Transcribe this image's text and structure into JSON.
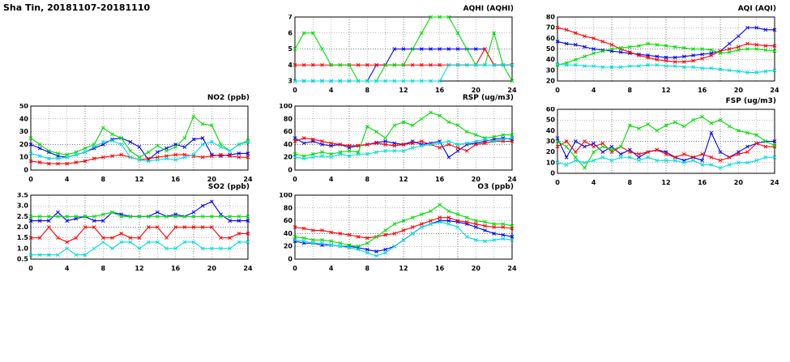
{
  "page_title": "Sha Tin, 20181107-20181110",
  "colors": {
    "blue": "#0000ff",
    "red": "#ff0000",
    "green": "#00dd00",
    "cyan": "#00dddd"
  },
  "x_axis": {
    "min": 0,
    "max": 24,
    "ticks": [
      0,
      4,
      8,
      12,
      16,
      20,
      24
    ],
    "grid_step": 2,
    "unit": "hour"
  },
  "chart_data": [
    {
      "id": "aqhi",
      "type": "line",
      "title": "AQHI (AQHI)",
      "ylim": [
        3,
        7
      ],
      "yticks": [
        3,
        4,
        5,
        6,
        7
      ],
      "ydecimals": 0,
      "series": [
        {
          "name": "blue",
          "color": "#0000ff",
          "values": [
            3,
            3,
            3,
            3,
            3,
            3,
            3,
            3,
            3,
            4,
            4,
            5,
            5,
            5,
            5,
            5,
            5,
            5,
            5,
            5,
            5,
            5,
            4,
            4,
            4
          ]
        },
        {
          "name": "red",
          "color": "#ff0000",
          "values": [
            4,
            4,
            4,
            4,
            4,
            4,
            4,
            4,
            4,
            4,
            4,
            4,
            4,
            4,
            4,
            4,
            4,
            4,
            4,
            4,
            4,
            5,
            4,
            4,
            4
          ]
        },
        {
          "name": "green",
          "color": "#00dd00",
          "values": [
            5,
            6,
            6,
            5,
            4,
            4,
            4,
            3,
            3,
            3,
            4,
            4,
            4,
            5,
            6,
            7,
            7,
            7,
            6,
            5,
            4,
            4,
            6,
            4,
            3
          ]
        },
        {
          "name": "cyan",
          "color": "#00dddd",
          "values": [
            3,
            3,
            3,
            3,
            3,
            3,
            3,
            3,
            3,
            3,
            3,
            3,
            3,
            3,
            3,
            3,
            3,
            4,
            4,
            4,
            4,
            4,
            4,
            4,
            4
          ]
        }
      ]
    },
    {
      "id": "aqi",
      "type": "line",
      "title": "AQI (AQI)",
      "ylim": [
        20,
        80
      ],
      "yticks": [
        20,
        30,
        40,
        50,
        60,
        70,
        80
      ],
      "ydecimals": 0,
      "series": [
        {
          "name": "blue",
          "color": "#0000ff",
          "values": [
            57,
            55,
            54,
            52,
            50,
            49,
            48,
            47,
            46,
            45,
            44,
            43,
            42,
            42,
            43,
            44,
            45,
            46,
            48,
            55,
            62,
            70,
            70,
            68,
            68
          ]
        },
        {
          "name": "red",
          "color": "#ff0000",
          "values": [
            70,
            68,
            65,
            62,
            60,
            57,
            54,
            50,
            47,
            44,
            42,
            40,
            39,
            38,
            38,
            39,
            41,
            44,
            48,
            50,
            52,
            55,
            54,
            53,
            53
          ]
        },
        {
          "name": "green",
          "color": "#00dd00",
          "values": [
            35,
            37,
            40,
            43,
            46,
            48,
            50,
            51,
            52,
            53,
            55,
            54,
            53,
            52,
            51,
            50,
            50,
            49,
            46,
            47,
            49,
            50,
            50,
            49,
            48
          ]
        },
        {
          "name": "cyan",
          "color": "#00dddd",
          "values": [
            36,
            35,
            35,
            34,
            34,
            33,
            33,
            33,
            34,
            34,
            35,
            35,
            34,
            34,
            33,
            33,
            32,
            32,
            31,
            30,
            29,
            28,
            28,
            29,
            30
          ]
        }
      ]
    },
    {
      "id": "no2",
      "type": "line",
      "title": "NO2 (ppb)",
      "ylim": [
        0,
        50
      ],
      "yticks": [
        0,
        10,
        20,
        30,
        40,
        50
      ],
      "ydecimals": 0,
      "series": [
        {
          "name": "blue",
          "color": "#0000ff",
          "values": [
            20,
            17,
            14,
            11,
            10,
            12,
            14,
            17,
            20,
            24,
            25,
            22,
            18,
            8,
            14,
            17,
            20,
            18,
            24,
            25,
            12,
            11,
            12,
            13,
            13
          ]
        },
        {
          "name": "red",
          "color": "#ff0000",
          "values": [
            7,
            6,
            5,
            5,
            5,
            6,
            7,
            9,
            10,
            11,
            12,
            10,
            8,
            9,
            10,
            11,
            12,
            12,
            11,
            10,
            11,
            12,
            11,
            10,
            10
          ]
        },
        {
          "name": "green",
          "color": "#00dd00",
          "values": [
            25,
            20,
            15,
            13,
            12,
            14,
            17,
            20,
            33,
            28,
            25,
            15,
            10,
            14,
            19,
            15,
            18,
            25,
            42,
            36,
            35,
            20,
            15,
            20,
            23
          ]
        },
        {
          "name": "cyan",
          "color": "#00dddd",
          "values": [
            13,
            11,
            9,
            9,
            10,
            12,
            14,
            18,
            22,
            23,
            20,
            10,
            8,
            7,
            8,
            9,
            8,
            10,
            12,
            20,
            22,
            18,
            15,
            20,
            22
          ]
        }
      ]
    },
    {
      "id": "rsp",
      "type": "line",
      "title": "RSP (ug/m3)",
      "ylim": [
        0,
        100
      ],
      "yticks": [
        0,
        20,
        40,
        60,
        80,
        100
      ],
      "ydecimals": 0,
      "series": [
        {
          "name": "blue",
          "color": "#0000ff",
          "values": [
            50,
            42,
            45,
            40,
            38,
            40,
            35,
            38,
            40,
            43,
            45,
            42,
            40,
            45,
            40,
            42,
            45,
            20,
            30,
            40,
            42,
            45,
            48,
            50,
            48
          ]
        },
        {
          "name": "red",
          "color": "#ff0000",
          "values": [
            45,
            50,
            48,
            45,
            42,
            40,
            38,
            38,
            40,
            42,
            40,
            38,
            40,
            42,
            45,
            40,
            35,
            40,
            35,
            30,
            40,
            42,
            45,
            45,
            45
          ]
        },
        {
          "name": "green",
          "color": "#00dd00",
          "values": [
            25,
            22,
            25,
            28,
            25,
            28,
            30,
            28,
            68,
            60,
            50,
            70,
            75,
            70,
            80,
            90,
            85,
            75,
            70,
            60,
            55,
            50,
            52,
            55,
            55
          ]
        },
        {
          "name": "cyan",
          "color": "#00dddd",
          "values": [
            20,
            18,
            20,
            22,
            20,
            25,
            22,
            25,
            25,
            28,
            30,
            30,
            30,
            35,
            38,
            40,
            42,
            45,
            40,
            42,
            45,
            48,
            45,
            48,
            50
          ]
        }
      ]
    },
    {
      "id": "fsp",
      "type": "line",
      "title": "FSP (ug/m3)",
      "ylim": [
        0,
        60
      ],
      "yticks": [
        0,
        10,
        20,
        30,
        40,
        50,
        60
      ],
      "ydecimals": 0,
      "series": [
        {
          "name": "blue",
          "color": "#0000ff",
          "values": [
            33,
            15,
            30,
            25,
            28,
            20,
            25,
            18,
            22,
            15,
            20,
            22,
            20,
            15,
            12,
            15,
            12,
            38,
            20,
            15,
            20,
            25,
            28,
            30,
            30
          ]
        },
        {
          "name": "red",
          "color": "#ff0000",
          "values": [
            25,
            30,
            20,
            30,
            25,
            28,
            20,
            25,
            20,
            18,
            20,
            22,
            18,
            15,
            18,
            15,
            18,
            15,
            12,
            15,
            18,
            20,
            28,
            25,
            25
          ]
        },
        {
          "name": "green",
          "color": "#00dd00",
          "values": [
            30,
            25,
            15,
            5,
            20,
            25,
            22,
            25,
            45,
            42,
            46,
            40,
            45,
            48,
            44,
            50,
            53,
            47,
            50,
            44,
            40,
            38,
            36,
            30,
            26
          ]
        },
        {
          "name": "cyan",
          "color": "#00dddd",
          "values": [
            10,
            8,
            12,
            10,
            12,
            15,
            12,
            15,
            15,
            12,
            15,
            12,
            12,
            12,
            10,
            12,
            8,
            8,
            5,
            8,
            10,
            10,
            12,
            15,
            15
          ]
        }
      ]
    },
    {
      "id": "so2",
      "type": "line",
      "title": "SO2 (ppb)",
      "ylim": [
        0.5,
        3.5
      ],
      "yticks": [
        0.5,
        1.0,
        1.5,
        2.0,
        2.5,
        3.0,
        3.5
      ],
      "ydecimals": 1,
      "series": [
        {
          "name": "blue",
          "color": "#0000ff",
          "values": [
            2.3,
            2.3,
            2.3,
            2.7,
            2.3,
            2.4,
            2.5,
            2.3,
            2.3,
            2.7,
            2.6,
            2.5,
            2.5,
            2.5,
            2.7,
            2.5,
            2.6,
            2.5,
            2.7,
            3.0,
            3.2,
            2.6,
            2.3,
            2.3,
            2.3
          ]
        },
        {
          "name": "red",
          "color": "#ff0000",
          "values": [
            1.5,
            1.5,
            2.0,
            1.5,
            1.3,
            1.5,
            2.0,
            2.0,
            1.5,
            1.5,
            1.7,
            1.5,
            1.5,
            2.0,
            2.0,
            1.5,
            2.0,
            2.0,
            2.0,
            2.0,
            2.0,
            1.5,
            1.5,
            1.7,
            1.7
          ]
        },
        {
          "name": "green",
          "color": "#00dd00",
          "values": [
            2.5,
            2.5,
            2.5,
            2.5,
            2.5,
            2.5,
            2.5,
            2.5,
            2.6,
            2.7,
            2.5,
            2.5,
            2.5,
            2.5,
            2.5,
            2.5,
            2.5,
            2.5,
            2.5,
            2.5,
            2.5,
            2.5,
            2.5,
            2.5,
            2.5
          ]
        },
        {
          "name": "cyan",
          "color": "#00dddd",
          "values": [
            0.7,
            0.7,
            0.7,
            0.7,
            1.0,
            0.7,
            0.7,
            1.0,
            1.3,
            1.0,
            1.3,
            1.3,
            1.0,
            1.3,
            1.3,
            1.0,
            1.0,
            1.3,
            1.3,
            1.0,
            1.0,
            1.0,
            1.0,
            1.3,
            1.3
          ]
        }
      ]
    },
    {
      "id": "o3",
      "type": "line",
      "title": "O3 (ppb)",
      "ylim": [
        0,
        100
      ],
      "yticks": [
        0,
        20,
        40,
        60,
        80,
        100
      ],
      "ydecimals": 0,
      "series": [
        {
          "name": "blue",
          "color": "#0000ff",
          "values": [
            28,
            25,
            25,
            22,
            22,
            20,
            20,
            18,
            15,
            12,
            15,
            20,
            30,
            40,
            50,
            55,
            60,
            60,
            58,
            55,
            50,
            45,
            40,
            38,
            35
          ]
        },
        {
          "name": "red",
          "color": "#ff0000",
          "values": [
            50,
            48,
            45,
            45,
            42,
            40,
            38,
            35,
            33,
            35,
            38,
            40,
            45,
            50,
            55,
            60,
            65,
            65,
            60,
            58,
            55,
            52,
            50,
            50,
            48
          ]
        },
        {
          "name": "green",
          "color": "#00dd00",
          "values": [
            35,
            33,
            30,
            30,
            28,
            25,
            22,
            20,
            25,
            35,
            45,
            55,
            60,
            65,
            70,
            75,
            85,
            75,
            70,
            65,
            60,
            58,
            55,
            55,
            52
          ]
        },
        {
          "name": "cyan",
          "color": "#00dddd",
          "values": [
            30,
            28,
            25,
            25,
            22,
            20,
            18,
            15,
            10,
            5,
            10,
            20,
            30,
            40,
            50,
            55,
            58,
            55,
            50,
            35,
            30,
            28,
            30,
            32,
            30
          ]
        }
      ]
    }
  ]
}
